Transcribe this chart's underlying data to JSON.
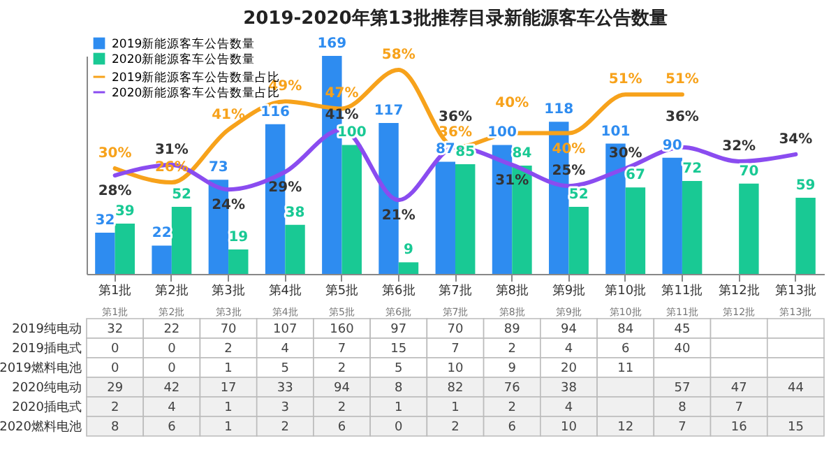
{
  "chart_data": [
    {
      "type": "bar",
      "title": "2019-2020年第13批推荐目录新能源客车公告数量",
      "categories": [
        "第1批",
        "第2批",
        "第3批",
        "第4批",
        "第5批",
        "第6批",
        "第7批",
        "第8批",
        "第9批",
        "第10批",
        "第11批",
        "第12批",
        "第13批"
      ],
      "series": [
        {
          "name": "2019新能源客车公告数量",
          "color": "#2e8cf0",
          "values": [
            32,
            22,
            73,
            116,
            169,
            117,
            87,
            100,
            118,
            101,
            90,
            null,
            null
          ],
          "value_labels": [
            "32",
            "22",
            "73",
            "116",
            "169",
            "117",
            "87",
            "100",
            "118",
            "101",
            "90",
            null,
            null
          ]
        },
        {
          "name": "2020新能源客车公告数量",
          "color": "#19c994",
          "values": [
            39,
            52,
            19,
            38,
            100,
            9,
            85,
            84,
            52,
            67,
            72,
            70,
            59
          ],
          "value_labels": [
            "39",
            "52",
            "19",
            "38",
            "100",
            "9",
            "85",
            "84",
            "52",
            "67",
            "72",
            "70",
            "59"
          ]
        },
        {
          "name": "2019新能源客车公告数量占比",
          "type": "line",
          "axis": "y2",
          "color": "#f7a21b",
          "values": [
            30,
            26,
            41,
            49,
            47,
            58,
            36,
            40,
            40,
            51,
            51,
            null,
            null
          ],
          "value_labels": [
            "30%",
            "26%",
            "41%",
            "49%",
            "47%",
            "58%",
            "36%",
            "40%",
            "40%",
            "51%",
            "51%",
            null,
            null
          ]
        },
        {
          "name": "2020新能源客车公告数量占比",
          "type": "line",
          "axis": "y2",
          "color": "#8a4cf0",
          "values": [
            28,
            31,
            24,
            29,
            41,
            21,
            36,
            31,
            25,
            30,
            36,
            32,
            34
          ],
          "value_labels": [
            "28%",
            "31%",
            "24%",
            "29%",
            "41%",
            "21%",
            "36%",
            "31%",
            "25%",
            "30%",
            "36%",
            "32%",
            "34%"
          ]
        }
      ],
      "legend": "top left",
      "grid": false,
      "tick_labels": "x"
    },
    {
      "type": "other",
      "data_labels": true,
      "categories": [
        "第1批",
        "第2批",
        "第3批",
        "第4批",
        "第5批",
        "第6批",
        "第7批",
        "第8批",
        "第9批",
        "第10批",
        "第11批",
        "第12批",
        "第13批"
      ],
      "series": [
        {
          "name": "2019纯电动",
          "type": "other",
          "values": [
            32,
            22,
            70,
            107,
            160,
            97,
            70,
            89,
            94,
            84,
            45,
            null,
            null
          ]
        },
        {
          "name": "2019插电式",
          "type": "other",
          "values": [
            0,
            0,
            2,
            4,
            7,
            15,
            7,
            2,
            4,
            6,
            40,
            null,
            null
          ]
        },
        {
          "name": "2019燃料电池",
          "type": "other",
          "values": [
            0,
            0,
            1,
            5,
            2,
            5,
            10,
            9,
            20,
            11,
            null,
            null,
            null
          ]
        },
        {
          "name": "2020纯电动",
          "type": "other",
          "values": [
            29,
            42,
            17,
            33,
            94,
            8,
            82,
            76,
            38,
            null,
            57,
            47,
            44
          ]
        },
        {
          "name": "2020插电式",
          "type": "other",
          "values": [
            2,
            4,
            1,
            3,
            2,
            1,
            1,
            2,
            4,
            null,
            8,
            7,
            null
          ]
        },
        {
          "name": "2020燃料电池",
          "type": "other",
          "values": [
            8,
            6,
            1,
            2,
            6,
            0,
            2,
            6,
            10,
            12,
            7,
            16,
            15
          ]
        }
      ]
    }
  ]
}
